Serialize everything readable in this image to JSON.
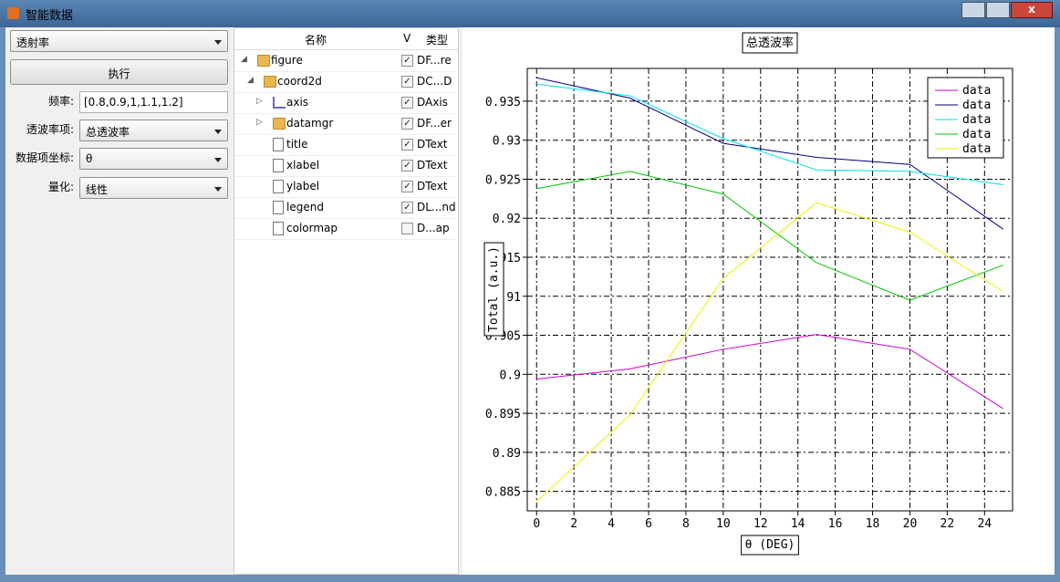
{
  "window": {
    "title": "智能数据"
  },
  "left_panel": {
    "mode": "透射率",
    "run_button": "执行",
    "fields": [
      {
        "label": "频率:",
        "value": "[0.8,0.9,1,1.1,1.2]"
      },
      {
        "label": "透波率项:",
        "value": "总透波率"
      },
      {
        "label": "数据项坐标:",
        "value": "θ"
      },
      {
        "label": "量化:",
        "value": "线性"
      }
    ]
  },
  "tree": {
    "headers": [
      "名称",
      "V",
      "类型"
    ],
    "rows": [
      {
        "name": "figure",
        "checked": true,
        "type": "DF...re"
      },
      {
        "name": "coord2d",
        "checked": true,
        "type": "DC...D"
      },
      {
        "name": "axis",
        "checked": true,
        "type": "DAxis"
      },
      {
        "name": "datamgr",
        "checked": true,
        "type": "DF...er"
      },
      {
        "name": "title",
        "checked": true,
        "type": "DText"
      },
      {
        "name": "xlabel",
        "checked": true,
        "type": "DText"
      },
      {
        "name": "ylabel",
        "checked": true,
        "type": "DText"
      },
      {
        "name": "legend",
        "checked": true,
        "type": "DL...nd"
      },
      {
        "name": "colormap",
        "checked": false,
        "type": "D...ap"
      }
    ]
  },
  "chart_data": {
    "type": "line",
    "title": "总透波率",
    "x_label": "θ (DEG)",
    "y_label": "Total (a.u.)",
    "x": [
      0,
      5,
      10,
      15,
      20,
      25
    ],
    "xlim": [
      -0.5,
      25.5
    ],
    "xticks": [
      0,
      2,
      4,
      6,
      8,
      10,
      12,
      14,
      16,
      18,
      20,
      22,
      24
    ],
    "ylim": [
      0.8825,
      0.9392
    ],
    "yticks": [
      0.885,
      0.89,
      0.895,
      0.9,
      0.905,
      0.91,
      0.915,
      0.92,
      0.925,
      0.93,
      0.935
    ],
    "grid": true,
    "legend": "upper right",
    "series": [
      {
        "name": "data",
        "color": "#d000d0",
        "values": [
          0.8994,
          0.9007,
          0.9032,
          0.9051,
          0.9032,
          0.8956
        ]
      },
      {
        "name": "data",
        "color": "#000080",
        "values": [
          0.938,
          0.9354,
          0.9296,
          0.9278,
          0.9269,
          0.9186
        ]
      },
      {
        "name": "data",
        "color": "#00e0e0",
        "values": [
          0.9372,
          0.9357,
          0.9302,
          0.9262,
          0.926,
          0.9243
        ]
      },
      {
        "name": "data",
        "color": "#00c800",
        "values": [
          0.9238,
          0.926,
          0.9231,
          0.9143,
          0.9095,
          0.914
        ]
      },
      {
        "name": "data",
        "color": "#f0f000",
        "values": [
          0.8837,
          0.8948,
          0.9123,
          0.922,
          0.9182,
          0.9106
        ]
      }
    ]
  }
}
